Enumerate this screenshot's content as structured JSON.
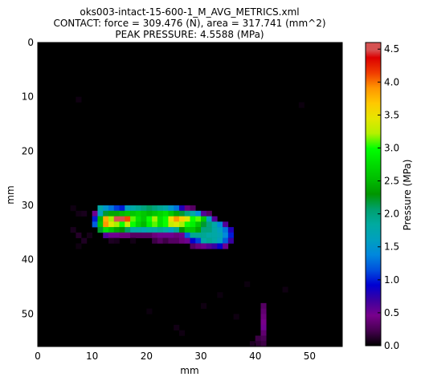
{
  "chart_data": {
    "type": "heatmap",
    "title_lines": [
      "oks003-intact-15-600-1_M_AVG_METRICS.xml",
      "CONTACT: force = 309.476 (N), area = 317.741 (mm^2)",
      "PEAK PRESSURE: 4.5588 (MPa)"
    ],
    "xlabel": "mm",
    "ylabel": "mm",
    "xlim": [
      0,
      56
    ],
    "ylim": [
      56,
      0
    ],
    "xticks": [
      "0",
      "10",
      "20",
      "30",
      "40",
      "50"
    ],
    "xtick_values": [
      0,
      10,
      20,
      30,
      40,
      50
    ],
    "yticks": [
      "0",
      "10",
      "20",
      "30",
      "40",
      "50"
    ],
    "ytick_values": [
      0,
      10,
      20,
      30,
      40,
      50
    ],
    "colorbar": {
      "label": "Pressure (MPa)",
      "range": [
        0.0,
        4.6
      ],
      "ticks": [
        "0.0",
        "0.5",
        "1.0",
        "1.5",
        "2.0",
        "2.5",
        "3.0",
        "3.5",
        "4.0",
        "4.5"
      ],
      "tick_values": [
        0.0,
        0.5,
        1.0,
        1.5,
        2.0,
        2.5,
        3.0,
        3.5,
        4.0,
        4.5
      ],
      "colormap": "nipy_spectral"
    },
    "peak_pressure": 4.5588,
    "cell_size_mm": 1,
    "cells": [
      [
        11,
        30,
        1.8
      ],
      [
        12,
        30,
        1.5
      ],
      [
        13,
        30,
        1.3
      ],
      [
        14,
        30,
        1.1
      ],
      [
        15,
        30,
        1.0
      ],
      [
        16,
        30,
        1.6
      ],
      [
        17,
        30,
        1.8
      ],
      [
        18,
        30,
        1.9
      ],
      [
        19,
        30,
        2.0
      ],
      [
        20,
        30,
        2.1
      ],
      [
        21,
        30,
        2.0
      ],
      [
        22,
        30,
        1.9
      ],
      [
        23,
        30,
        1.8
      ],
      [
        24,
        30,
        1.5
      ],
      [
        25,
        30,
        1.3
      ],
      [
        26,
        30,
        0.8
      ],
      [
        27,
        30,
        0.4
      ],
      [
        28,
        30,
        0.3
      ],
      [
        10,
        31,
        0.5
      ],
      [
        11,
        31,
        1.6
      ],
      [
        12,
        31,
        2.2
      ],
      [
        13,
        31,
        2.4
      ],
      [
        14,
        31,
        2.4
      ],
      [
        15,
        31,
        2.5
      ],
      [
        16,
        31,
        2.6
      ],
      [
        17,
        31,
        2.6
      ],
      [
        18,
        31,
        2.7
      ],
      [
        19,
        31,
        2.6
      ],
      [
        20,
        31,
        2.5
      ],
      [
        21,
        31,
        2.6
      ],
      [
        22,
        31,
        2.7
      ],
      [
        23,
        31,
        2.8
      ],
      [
        24,
        31,
        2.6
      ],
      [
        25,
        31,
        2.4
      ],
      [
        26,
        31,
        2.2
      ],
      [
        27,
        31,
        2.0
      ],
      [
        28,
        31,
        1.8
      ],
      [
        29,
        31,
        1.4
      ],
      [
        30,
        31,
        0.6
      ],
      [
        31,
        31,
        0.3
      ],
      [
        10,
        32,
        1.0
      ],
      [
        11,
        32,
        2.5
      ],
      [
        12,
        32,
        3.8
      ],
      [
        13,
        32,
        3.2
      ],
      [
        14,
        32,
        4.5
      ],
      [
        15,
        32,
        4.5
      ],
      [
        16,
        32,
        4.1
      ],
      [
        17,
        32,
        3.1
      ],
      [
        18,
        32,
        2.8
      ],
      [
        19,
        32,
        2.6
      ],
      [
        20,
        32,
        3.0
      ],
      [
        21,
        32,
        3.2
      ],
      [
        22,
        32,
        2.8
      ],
      [
        23,
        32,
        3.0
      ],
      [
        24,
        32,
        3.5
      ],
      [
        25,
        32,
        3.9
      ],
      [
        26,
        32,
        3.6
      ],
      [
        27,
        32,
        3.4
      ],
      [
        28,
        32,
        3.0
      ],
      [
        29,
        32,
        3.1
      ],
      [
        30,
        32,
        2.6
      ],
      [
        31,
        32,
        1.6
      ],
      [
        32,
        32,
        0.6
      ],
      [
        10,
        33,
        1.2
      ],
      [
        11,
        33,
        2.6
      ],
      [
        12,
        33,
        3.9
      ],
      [
        13,
        33,
        3.4
      ],
      [
        14,
        33,
        3.2
      ],
      [
        15,
        33,
        3.0
      ],
      [
        16,
        33,
        3.3
      ],
      [
        17,
        33,
        3.0
      ],
      [
        18,
        33,
        2.7
      ],
      [
        19,
        33,
        2.5
      ],
      [
        20,
        33,
        2.9
      ],
      [
        21,
        33,
        3.1
      ],
      [
        22,
        33,
        2.8
      ],
      [
        23,
        33,
        3.0
      ],
      [
        24,
        33,
        3.3
      ],
      [
        25,
        33,
        3.4
      ],
      [
        26,
        33,
        3.2
      ],
      [
        27,
        33,
        3.0
      ],
      [
        28,
        33,
        2.9
      ],
      [
        29,
        33,
        2.6
      ],
      [
        30,
        33,
        2.2
      ],
      [
        31,
        33,
        2.0
      ],
      [
        32,
        33,
        1.8
      ],
      [
        33,
        33,
        1.4
      ],
      [
        34,
        33,
        0.6
      ],
      [
        11,
        34,
        2.2
      ],
      [
        12,
        34,
        2.8
      ],
      [
        13,
        34,
        2.6
      ],
      [
        14,
        34,
        2.4
      ],
      [
        15,
        34,
        2.3
      ],
      [
        16,
        34,
        2.1
      ],
      [
        17,
        34,
        1.8
      ],
      [
        18,
        34,
        1.8
      ],
      [
        19,
        34,
        1.7
      ],
      [
        20,
        34,
        1.8
      ],
      [
        21,
        34,
        1.8
      ],
      [
        22,
        34,
        1.9
      ],
      [
        23,
        34,
        1.8
      ],
      [
        24,
        34,
        1.6
      ],
      [
        25,
        34,
        1.9
      ],
      [
        26,
        34,
        2.3
      ],
      [
        27,
        34,
        2.6
      ],
      [
        28,
        34,
        2.6
      ],
      [
        29,
        34,
        2.4
      ],
      [
        30,
        34,
        2.0
      ],
      [
        31,
        34,
        2.0
      ],
      [
        32,
        34,
        1.8
      ],
      [
        33,
        34,
        1.6
      ],
      [
        34,
        34,
        1.3
      ],
      [
        35,
        34,
        0.8
      ],
      [
        12,
        35,
        0.6
      ],
      [
        13,
        35,
        0.5
      ],
      [
        14,
        35,
        0.5
      ],
      [
        15,
        35,
        0.4
      ],
      [
        16,
        35,
        0.4
      ],
      [
        17,
        35,
        0.3
      ],
      [
        18,
        35,
        0.3
      ],
      [
        19,
        35,
        0.3
      ],
      [
        20,
        35,
        0.3
      ],
      [
        21,
        35,
        0.4
      ],
      [
        22,
        35,
        0.5
      ],
      [
        23,
        35,
        0.5
      ],
      [
        24,
        35,
        0.5
      ],
      [
        25,
        35,
        0.4
      ],
      [
        26,
        35,
        0.5
      ],
      [
        27,
        35,
        1.2
      ],
      [
        28,
        35,
        1.9
      ],
      [
        29,
        35,
        1.9
      ],
      [
        30,
        35,
        1.9
      ],
      [
        31,
        35,
        1.8
      ],
      [
        32,
        35,
        1.8
      ],
      [
        33,
        35,
        1.7
      ],
      [
        34,
        35,
        1.4
      ],
      [
        35,
        35,
        1.0
      ],
      [
        21,
        36,
        0.2
      ],
      [
        22,
        36,
        0.3
      ],
      [
        23,
        36,
        0.2
      ],
      [
        24,
        36,
        0.3
      ],
      [
        25,
        36,
        0.3
      ],
      [
        26,
        36,
        0.4
      ],
      [
        27,
        36,
        0.5
      ],
      [
        28,
        36,
        0.9
      ],
      [
        29,
        36,
        1.1
      ],
      [
        30,
        36,
        1.8
      ],
      [
        31,
        36,
        1.9
      ],
      [
        32,
        36,
        1.8
      ],
      [
        33,
        36,
        1.6
      ],
      [
        34,
        36,
        1.2
      ],
      [
        35,
        36,
        0.7
      ],
      [
        28,
        37,
        0.3
      ],
      [
        29,
        37,
        0.4
      ],
      [
        30,
        37,
        0.5
      ],
      [
        31,
        37,
        0.6
      ],
      [
        32,
        37,
        0.7
      ],
      [
        33,
        37,
        0.9
      ],
      [
        34,
        37,
        0.5
      ],
      [
        6,
        30,
        0.05
      ],
      [
        7,
        31,
        0.06
      ],
      [
        8,
        31,
        0.08
      ],
      [
        6,
        34,
        0.08
      ],
      [
        7,
        35,
        0.12
      ],
      [
        8,
        36,
        0.1
      ],
      [
        9,
        35,
        0.07
      ],
      [
        7,
        37,
        0.05
      ],
      [
        13,
        36,
        0.1
      ],
      [
        14,
        36,
        0.08
      ],
      [
        17,
        36,
        0.06
      ],
      [
        7,
        10,
        0.05
      ],
      [
        48,
        11,
        0.04
      ],
      [
        41,
        48,
        0.3
      ],
      [
        41,
        49,
        0.35
      ],
      [
        41,
        50,
        0.4
      ],
      [
        41,
        51,
        0.45
      ],
      [
        41,
        52,
        0.5
      ],
      [
        41,
        53,
        0.35
      ],
      [
        41,
        54,
        0.25
      ],
      [
        41,
        55,
        0.2
      ],
      [
        40,
        54,
        0.2
      ],
      [
        40,
        55,
        0.15
      ],
      [
        39,
        55,
        0.1
      ],
      [
        30,
        48,
        0.05
      ],
      [
        25,
        52,
        0.06
      ],
      [
        26,
        53,
        0.05
      ],
      [
        20,
        49,
        0.04
      ],
      [
        38,
        44,
        0.04
      ],
      [
        45,
        45,
        0.05
      ],
      [
        36,
        50,
        0.05
      ],
      [
        33,
        46,
        0.04
      ]
    ]
  }
}
